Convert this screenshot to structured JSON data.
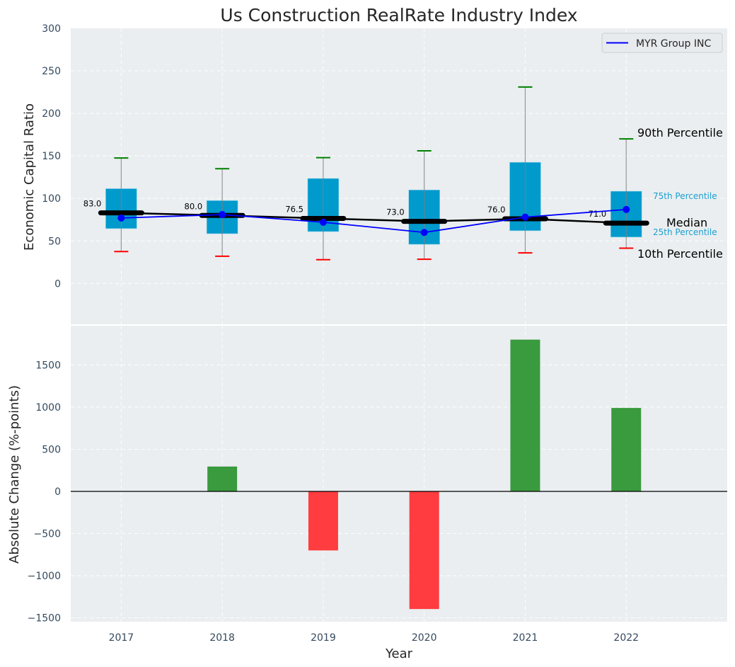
{
  "chart_data": [
    {
      "type": "box",
      "title": "Us Construction RealRate Industry Index",
      "xlabel": "",
      "ylabel": "Economic Capital Ratio",
      "ylim": [
        -48,
        300
      ],
      "xlim": [
        2016.5,
        2023.0
      ],
      "yticks": [
        0,
        50,
        100,
        150,
        200,
        250,
        300
      ],
      "grid": true,
      "categories": [
        "2017",
        "2018",
        "2019",
        "2020",
        "2021",
        "2022"
      ],
      "percentiles": {
        "p10": [
          37.5,
          32,
          28,
          28.5,
          36,
          41.5
        ],
        "p25": [
          64.5,
          58.5,
          61,
          46,
          62,
          54.5
        ],
        "median": [
          83.0,
          80.0,
          76.5,
          73.0,
          76.0,
          71.0
        ],
        "p75": [
          111.5,
          97.5,
          123.5,
          110,
          142.5,
          108.5
        ],
        "p90": [
          147.5,
          135,
          148,
          156,
          231,
          170
        ]
      },
      "median_labels": [
        "83.0",
        "80.0",
        "76.5",
        "73.0",
        "76.0",
        "71.0"
      ],
      "series": [
        {
          "name": "MYR Group INC",
          "values": [
            77,
            81,
            72,
            60,
            78,
            87
          ],
          "color": "#0000ff"
        }
      ],
      "legend": {
        "position": "top-right",
        "entries": [
          "MYR Group INC"
        ]
      },
      "annotations": {
        "p90": "90th Percentile",
        "p75": "75th Percentile",
        "median": "Median",
        "p25": "25th Percentile",
        "p10": "10th Percentile"
      },
      "colors": {
        "box": "#009acd",
        "median": "#000000",
        "p90_cap": "#008000",
        "p10_cap": "#ff0000",
        "whisker": "#808080",
        "percentile_label": "#1a9fd0"
      }
    },
    {
      "type": "bar",
      "title": "",
      "xlabel": "Year",
      "ylabel": "Absolute Change (%-points)",
      "ylim": [
        -1545,
        1965
      ],
      "yticks": [
        -1500,
        -1000,
        -500,
        0,
        500,
        1000,
        1500
      ],
      "ytick_labels": [
        "−1500",
        "−1000",
        "−500",
        "0",
        "500",
        "1000",
        "1500"
      ],
      "grid": true,
      "categories": [
        "2017",
        "2018",
        "2019",
        "2020",
        "2021",
        "2022"
      ],
      "values": [
        0,
        295,
        -700,
        -1395,
        1800,
        990
      ],
      "colors": {
        "positive": "#3a9a3e",
        "negative": "#ff3c3f",
        "zero_line": "#000000"
      }
    }
  ]
}
